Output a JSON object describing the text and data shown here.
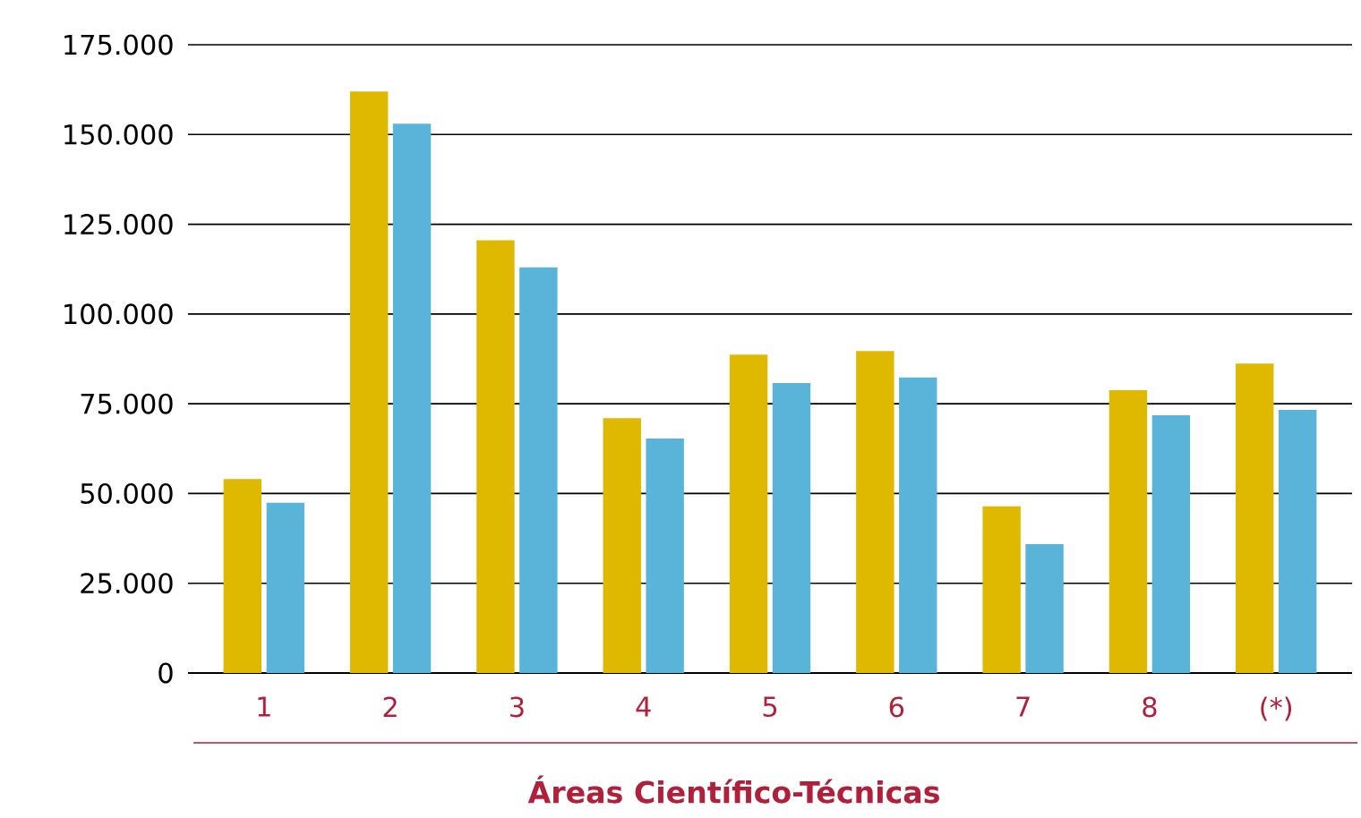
{
  "chart_data": {
    "type": "bar",
    "xlabel": "Áreas Científico-Técnicas",
    "categories": [
      "1",
      "2",
      "3",
      "4",
      "5",
      "6",
      "7",
      "8",
      "(*)"
    ],
    "series": [
      {
        "color": "#dfb800",
        "values": [
          54000,
          162000,
          120500,
          71000,
          88700,
          89700,
          46400,
          78800,
          86200
        ]
      },
      {
        "color": "#5ab3d8",
        "values": [
          47400,
          153000,
          113000,
          65300,
          80800,
          82300,
          35900,
          71800,
          73300
        ]
      }
    ],
    "ylim": [
      0,
      175000
    ],
    "yticks": [
      {
        "value": 0,
        "label": "0"
      },
      {
        "value": 25000,
        "label": "25.000"
      },
      {
        "value": 50000,
        "label": "50.000"
      },
      {
        "value": 75000,
        "label": "75.000"
      },
      {
        "value": 100000,
        "label": "100.000"
      },
      {
        "value": 125000,
        "label": "125.000"
      },
      {
        "value": 150000,
        "label": "150.000"
      },
      {
        "value": 175000,
        "label": "175.000"
      }
    ],
    "grid": "y"
  }
}
